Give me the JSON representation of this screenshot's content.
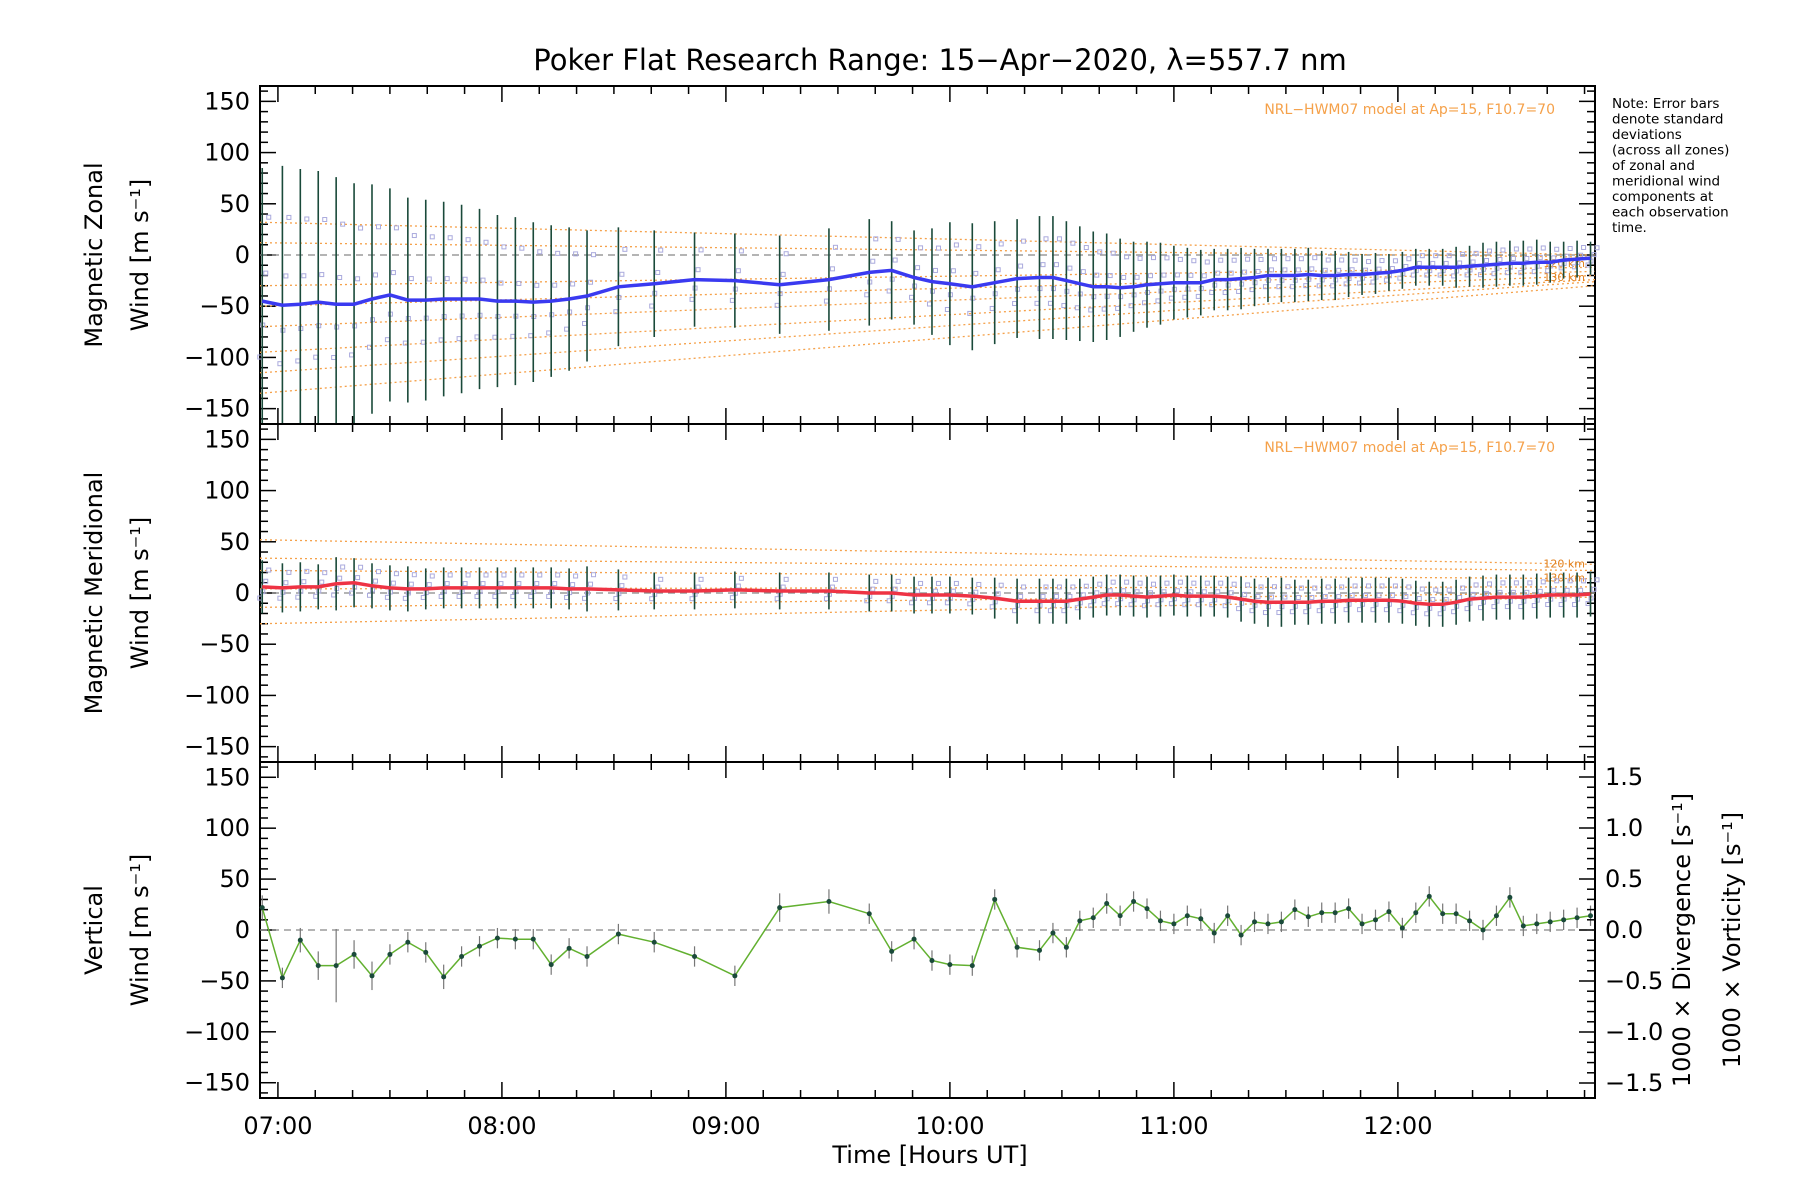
{
  "title": "Poker Flat Research Range: 15−Apr−2020, λ=557.7 nm",
  "note_lines": [
    "Note: Error bars",
    "denote standard",
    "deviations",
    "(across all zones)",
    "of zonal and",
    "meridional wind",
    "components at",
    "each observation",
    "time."
  ],
  "model_note": "NRL−HWM07 model at Ap=15, F10.7=70",
  "alt_labels": [
    "120 km",
    "130 km"
  ],
  "colors": {
    "zonal_line": "#3a3af0",
    "meridional_line": "#ee3344",
    "vertical_line": "#62b030",
    "error_bar": "#1a4a3a",
    "model": "#f5a14a",
    "zone_points": "#aaaadd",
    "divergence": "#4fa8d8",
    "vorticity": "#ef5c8c"
  },
  "chart_data": [
    {
      "panel": "zonal",
      "type": "line",
      "ylabel": [
        "Magnetic Zonal",
        "Wind [m s⁻¹]"
      ],
      "ylim": [
        -165,
        165
      ],
      "yticks": [
        -150,
        -100,
        -50,
        0,
        50,
        100,
        150
      ],
      "xlim": [
        6.92,
        12.88
      ],
      "x": [
        6.93,
        7.02,
        7.1,
        7.18,
        7.26,
        7.34,
        7.42,
        7.5,
        7.58,
        7.66,
        7.74,
        7.82,
        7.9,
        7.98,
        8.06,
        8.14,
        8.22,
        8.3,
        8.38,
        8.52,
        8.68,
        8.86,
        9.04,
        9.24,
        9.46,
        9.64,
        9.74,
        9.84,
        9.92,
        10.0,
        10.1,
        10.2,
        10.3,
        10.4,
        10.46,
        10.52,
        10.58,
        10.64,
        10.7,
        10.76,
        10.82,
        10.88,
        10.94,
        11.0,
        11.06,
        11.12,
        11.18,
        11.24,
        11.3,
        11.36,
        11.42,
        11.48,
        11.54,
        11.6,
        11.66,
        11.72,
        11.78,
        11.84,
        11.9,
        11.96,
        12.02,
        12.08,
        12.14,
        12.2,
        12.26,
        12.32,
        12.38,
        12.44,
        12.5,
        12.56,
        12.62,
        12.68,
        12.74,
        12.8,
        12.86
      ],
      "values": [
        -45,
        -49,
        -48,
        -46,
        -48,
        -48,
        -43,
        -39,
        -44,
        -44,
        -43,
        -43,
        -43,
        -45,
        -45,
        -46,
        -45,
        -43,
        -40,
        -31,
        -28,
        -24,
        -25,
        -29,
        -24,
        -17,
        -15,
        -22,
        -26,
        -28,
        -31,
        -27,
        -23,
        -22,
        -22,
        -25,
        -28,
        -31,
        -31,
        -32,
        -31,
        -29,
        -28,
        -27,
        -27,
        -27,
        -24,
        -24,
        -23,
        -22,
        -20,
        -20,
        -20,
        -19,
        -20,
        -20,
        -19,
        -19,
        -18,
        -17,
        -15,
        -12,
        -12,
        -12,
        -12,
        -11,
        -10,
        -9,
        -8,
        -8,
        -7,
        -7,
        -5,
        -4,
        -3
      ],
      "errors": [
        130,
        136,
        132,
        128,
        124,
        118,
        112,
        104,
        100,
        98,
        95,
        92,
        88,
        84,
        82,
        78,
        74,
        70,
        64,
        58,
        52,
        46,
        46,
        48,
        50,
        52,
        48,
        46,
        52,
        60,
        62,
        60,
        58,
        60,
        60,
        58,
        56,
        54,
        52,
        48,
        44,
        42,
        40,
        36,
        34,
        32,
        30,
        30,
        30,
        28,
        26,
        26,
        26,
        26,
        24,
        24,
        22,
        20,
        20,
        18,
        18,
        18,
        18,
        18,
        20,
        20,
        22,
        22,
        22,
        22,
        22,
        20,
        18,
        18,
        16
      ],
      "model": [
        {
          "y0": 32,
          "y1": 0
        },
        {
          "y0": 12,
          "y1": -2
        },
        {
          "y0": -30,
          "y1": -12
        },
        {
          "y0": -50,
          "y1": -16
        },
        {
          "y0": -70,
          "y1": -20
        },
        {
          "y0": -95,
          "y1": -24
        },
        {
          "y0": -115,
          "y1": -26
        },
        {
          "y0": -135,
          "y1": -30
        }
      ],
      "show_model_note": true
    },
    {
      "panel": "meridional",
      "type": "line",
      "ylabel": [
        "Magnetic Meridional",
        "Wind [m s⁻¹]"
      ],
      "ylim": [
        -165,
        165
      ],
      "yticks": [
        -150,
        -100,
        -50,
        0,
        50,
        100,
        150
      ],
      "xlim": [
        6.92,
        12.88
      ],
      "values": [
        6,
        5,
        6,
        6,
        9,
        10,
        7,
        5,
        4,
        4,
        5,
        5,
        5,
        5,
        5,
        5,
        5,
        4,
        4,
        3,
        2,
        2,
        3,
        2,
        2,
        0,
        0,
        -2,
        -2,
        -2,
        -3,
        -5,
        -8,
        -8,
        -8,
        -8,
        -6,
        -4,
        -2,
        -2,
        -3,
        -4,
        -3,
        -2,
        -3,
        -3,
        -3,
        -4,
        -6,
        -8,
        -9,
        -9,
        -9,
        -9,
        -8,
        -8,
        -7,
        -7,
        -7,
        -7,
        -8,
        -10,
        -11,
        -11,
        -9,
        -6,
        -5,
        -4,
        -4,
        -4,
        -3,
        -2,
        -2,
        -2,
        -1
      ],
      "errors": [
        26,
        24,
        24,
        22,
        26,
        24,
        22,
        22,
        22,
        20,
        20,
        20,
        20,
        20,
        20,
        20,
        20,
        20,
        22,
        20,
        18,
        18,
        18,
        18,
        18,
        18,
        18,
        18,
        18,
        18,
        18,
        20,
        22,
        22,
        22,
        22,
        20,
        20,
        20,
        20,
        20,
        20,
        20,
        20,
        20,
        20,
        20,
        20,
        22,
        22,
        24,
        24,
        22,
        22,
        22,
        22,
        22,
        22,
        22,
        22,
        22,
        22,
        22,
        22,
        22,
        22,
        22,
        22,
        22,
        22,
        22,
        22,
        22,
        22,
        22
      ],
      "model": [
        {
          "y0": 52,
          "y1": 28
        },
        {
          "y0": 34,
          "y1": 22
        },
        {
          "y0": 22,
          "y1": 14
        },
        {
          "y0": 4,
          "y1": 6
        },
        {
          "y0": -14,
          "y1": 0
        },
        {
          "y0": -30,
          "y1": -4
        }
      ],
      "show_model_note": true
    },
    {
      "panel": "vertical",
      "type": "line",
      "ylabel": [
        "Vertical",
        "Wind [m s⁻¹]"
      ],
      "ylim": [
        -165,
        165
      ],
      "yticks": [
        -150,
        -100,
        -50,
        0,
        50,
        100,
        150
      ],
      "y2ticks": [
        "1.5",
        "1.0",
        "0.5",
        "0.0",
        "−0.5",
        "−1.0",
        "−1.5"
      ],
      "y2lim": [
        -1.5,
        1.5
      ],
      "y2labels": [
        "1000 × Divergence [s⁻¹]",
        "1000 × Vorticity [s⁻¹]"
      ],
      "xlim": [
        6.92,
        12.88
      ],
      "xticks": [
        "07:00",
        "08:00",
        "09:00",
        "10:00",
        "11:00",
        "12:00"
      ],
      "xtick_values": [
        7,
        8,
        9,
        10,
        11,
        12
      ],
      "xlabel": "Time [Hours UT]",
      "x": [
        6.93,
        7.02,
        7.1,
        7.18,
        7.26,
        7.34,
        7.42,
        7.5,
        7.58,
        7.66,
        7.74,
        7.82,
        7.9,
        7.98,
        8.06,
        8.14,
        8.22,
        8.3,
        8.38,
        8.52,
        8.68,
        8.86,
        9.04,
        9.24,
        9.46,
        9.64,
        9.74,
        9.84,
        9.92,
        10.0,
        10.1,
        10.2,
        10.3,
        10.4,
        10.46,
        10.52,
        10.58,
        10.64,
        10.7,
        10.76,
        10.82,
        10.88,
        10.94,
        11.0,
        11.06,
        11.12,
        11.18,
        11.24,
        11.3,
        11.36,
        11.42,
        11.48,
        11.54,
        11.6,
        11.66,
        11.72,
        11.78,
        11.84,
        11.9,
        11.96,
        12.02,
        12.08,
        12.14,
        12.2,
        12.26,
        12.32,
        12.38,
        12.44,
        12.5,
        12.56,
        12.62,
        12.68,
        12.74,
        12.8,
        12.86
      ],
      "values": [
        22,
        -47,
        -10,
        -35,
        -35,
        -24,
        -45,
        -24,
        -12,
        -22,
        -46,
        -26,
        -16,
        -8,
        -9,
        -9,
        -34,
        -18,
        -26,
        -4,
        -12,
        -26,
        -45,
        22,
        28,
        16,
        -21,
        -9,
        -30,
        -34,
        -35,
        30,
        -17,
        -20,
        -3,
        -17,
        9,
        12,
        26,
        14,
        28,
        21,
        9,
        6,
        14,
        11,
        -3,
        14,
        -5,
        8,
        6,
        8,
        20,
        13,
        17,
        17,
        21,
        6,
        10,
        18,
        2,
        17,
        33,
        16,
        16,
        9,
        0,
        14,
        32,
        4,
        6,
        8,
        10,
        12,
        14
      ],
      "errors": [
        12,
        10,
        12,
        14,
        36,
        14,
        14,
        10,
        10,
        10,
        12,
        10,
        10,
        10,
        10,
        10,
        10,
        10,
        10,
        10,
        10,
        10,
        10,
        14,
        12,
        10,
        10,
        10,
        10,
        10,
        10,
        10,
        10,
        10,
        10,
        10,
        10,
        10,
        10,
        10,
        10,
        10,
        10,
        10,
        10,
        10,
        10,
        10,
        10,
        10,
        10,
        10,
        10,
        10,
        10,
        10,
        10,
        10,
        10,
        10,
        10,
        10,
        10,
        10,
        10,
        10,
        10,
        10,
        10,
        10,
        10,
        10,
        10,
        10,
        10
      ]
    }
  ]
}
